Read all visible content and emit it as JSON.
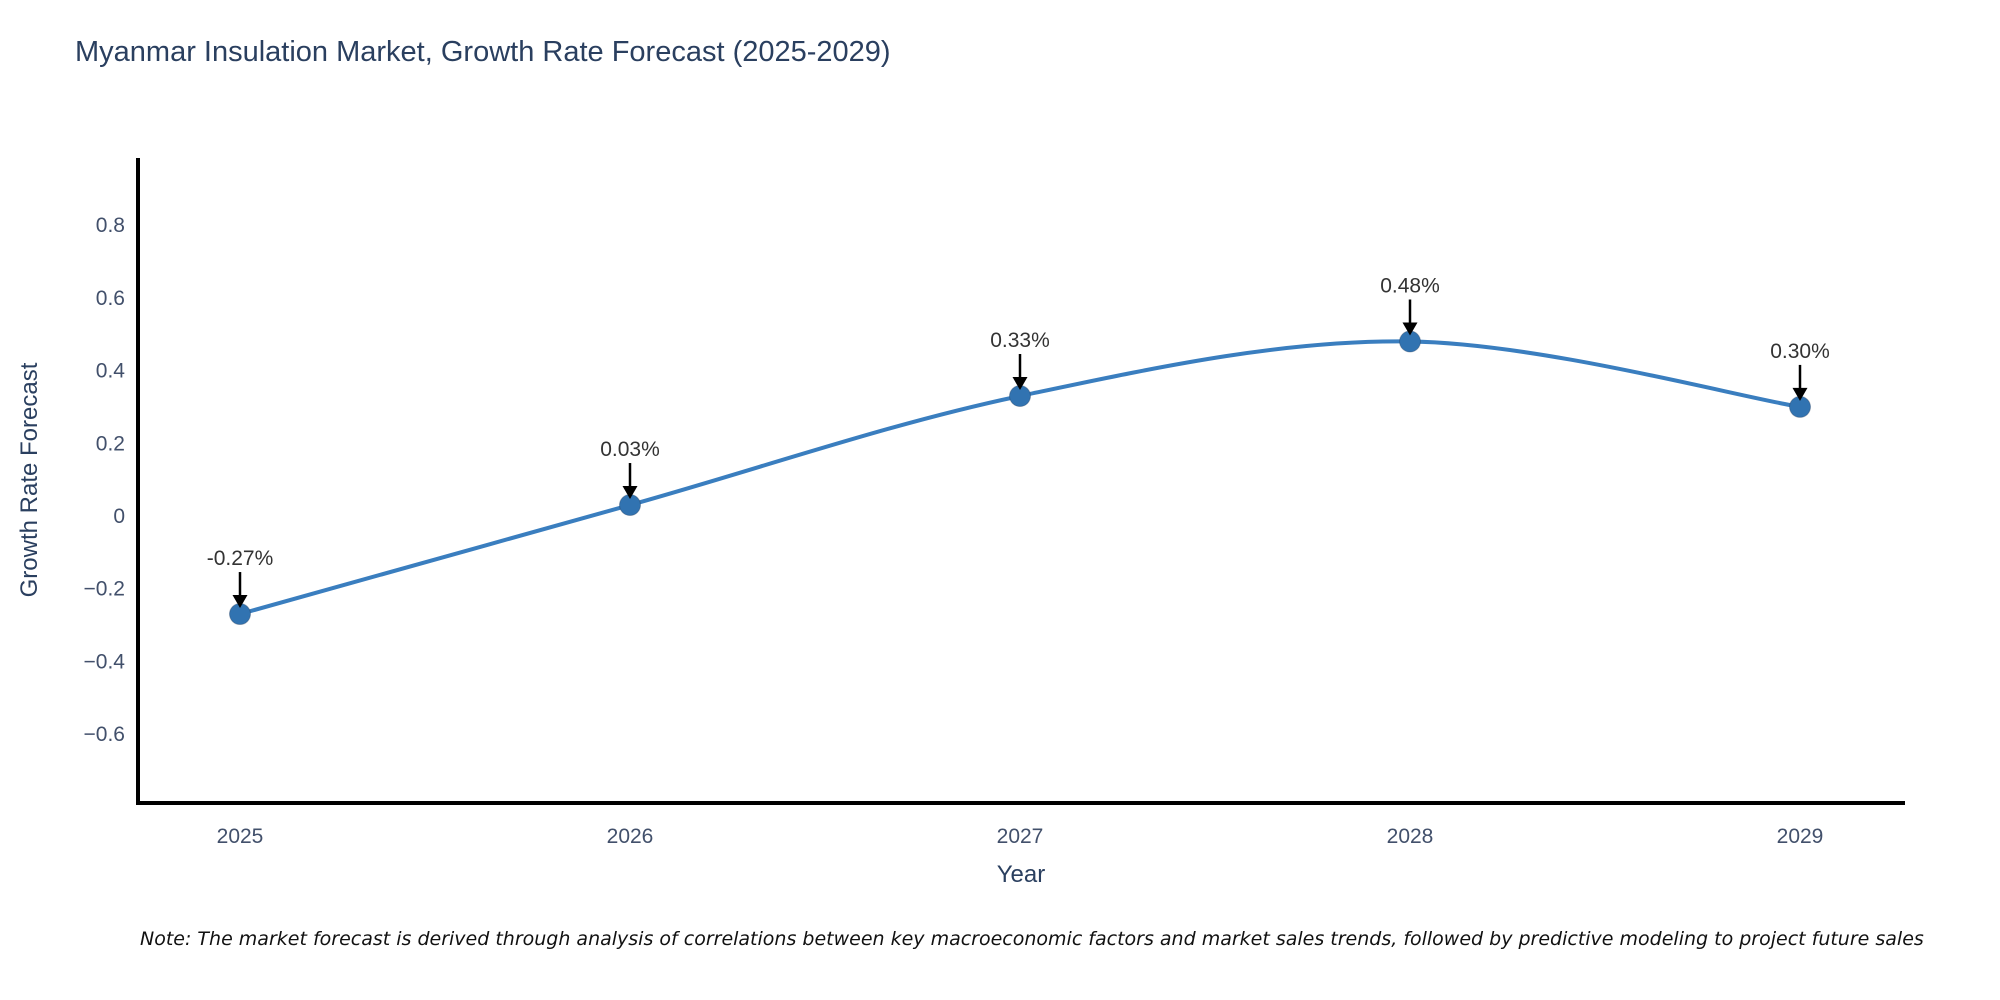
{
  "chart_data": {
    "type": "line",
    "title": "Myanmar Insulation Market, Growth Rate Forecast (2025-2029)",
    "xlabel": "Year",
    "ylabel": "Growth Rate Forecast",
    "categories": [
      "2025",
      "2026",
      "2027",
      "2028",
      "2029"
    ],
    "values": [
      -0.27,
      0.03,
      0.33,
      0.48,
      0.3
    ],
    "point_labels": [
      "-0.27%",
      "0.03%",
      "0.33%",
      "0.48%",
      "0.30%"
    ],
    "y_ticks": [
      0.8,
      0.6,
      0.4,
      0.2,
      0,
      -0.2,
      -0.4,
      -0.6
    ],
    "ylim": [
      -0.79,
      0.985
    ],
    "line_shape": "spline",
    "grid": false,
    "legend": "none",
    "colors": {
      "line": "#3a7ebf",
      "marker": "#3173b1",
      "axis": "#000000",
      "annotation_text": "#333333",
      "annotation_arrow": "#000000",
      "tick_label": "#42506b",
      "title_text": "#2a3f5f"
    }
  },
  "note": {
    "text": "Note: The market forecast is derived through analysis of correlations between key macroeconomic factors and market sales trends, followed by predictive modeling to project future sales"
  }
}
